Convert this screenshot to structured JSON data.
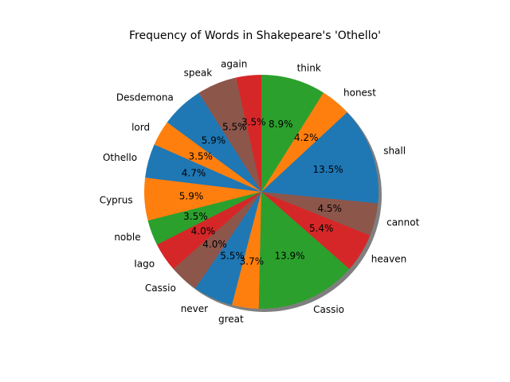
{
  "chart_data": {
    "type": "pie",
    "title": "Frequency of Words in Shakepeare's 'Othello'",
    "start_angle_deg": 90,
    "direction": "counterclockwise",
    "shadow": true,
    "slices": [
      {
        "label": "again",
        "percent": 3.5,
        "percent_text": "3.5%",
        "color": "#d62728"
      },
      {
        "label": "speak",
        "percent": 5.5,
        "percent_text": "5.5%",
        "color": "#8c564b"
      },
      {
        "label": "Desdemona",
        "percent": 5.9,
        "percent_text": "5.9%",
        "color": "#1f77b4"
      },
      {
        "label": "lord",
        "percent": 3.5,
        "percent_text": "3.5%",
        "color": "#ff7f0e"
      },
      {
        "label": "Othello",
        "percent": 4.7,
        "percent_text": "4.7%",
        "color": "#1f77b4"
      },
      {
        "label": "Cyprus",
        "percent": 5.9,
        "percent_text": "5.9%",
        "color": "#ff7f0e"
      },
      {
        "label": "noble",
        "percent": 3.5,
        "percent_text": "3.5%",
        "color": "#2ca02c"
      },
      {
        "label": "Iago",
        "percent": 4.0,
        "percent_text": "4.0%",
        "color": "#d62728"
      },
      {
        "label": "Cassio",
        "percent": 4.0,
        "percent_text": "4.0%",
        "color": "#8c564b"
      },
      {
        "label": "never",
        "percent": 5.5,
        "percent_text": "5.5%",
        "color": "#1f77b4"
      },
      {
        "label": "great",
        "percent": 3.7,
        "percent_text": "3.7%",
        "color": "#ff7f0e"
      },
      {
        "label": "Cassio",
        "percent": 13.9,
        "percent_text": "13.9%",
        "color": "#2ca02c"
      },
      {
        "label": "heaven",
        "percent": 5.4,
        "percent_text": "5.4%",
        "color": "#d62728"
      },
      {
        "label": "cannot",
        "percent": 4.5,
        "percent_text": "4.5%",
        "color": "#8c564b"
      },
      {
        "label": "shall",
        "percent": 13.5,
        "percent_text": "13.5%",
        "color": "#1f77b4"
      },
      {
        "label": "honest",
        "percent": 4.2,
        "percent_text": "4.2%",
        "color": "#ff7f0e"
      },
      {
        "label": "think",
        "percent": 8.9,
        "percent_text": "8.9%",
        "color": "#2ca02c"
      }
    ]
  }
}
